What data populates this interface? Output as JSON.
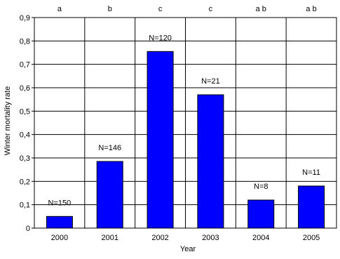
{
  "chart_data": {
    "type": "bar",
    "title": "",
    "xlabel": "Year",
    "ylabel": "Winter mortality rate",
    "categories": [
      "2000",
      "2001",
      "2002",
      "2003",
      "2004",
      "2005"
    ],
    "values": [
      0.05,
      0.285,
      0.755,
      0.57,
      0.12,
      0.18
    ],
    "n_labels": [
      "N=150",
      "N=146",
      "N=120",
      "N=21",
      "N=8",
      "N=11"
    ],
    "group_letters": [
      "a",
      "b",
      "c",
      "c",
      "a b",
      "a b"
    ],
    "ylim": [
      0,
      0.9
    ],
    "yticks": [
      "0",
      "0,1",
      "0,2",
      "0,3",
      "0,4",
      "0,5",
      "0,6",
      "0,7",
      "0,8",
      "0,9"
    ],
    "grid": true,
    "bar_color": "#0000ff",
    "bar_edge_color": "#000000"
  }
}
